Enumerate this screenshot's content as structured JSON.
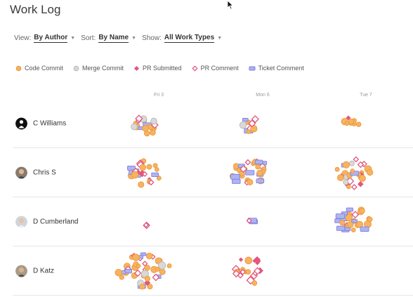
{
  "title": "Work Log",
  "filters": [
    {
      "label": "View:",
      "value": "By Author"
    },
    {
      "label": "Sort:",
      "value": "By Name"
    },
    {
      "label": "Show:",
      "value": "All Work Types"
    }
  ],
  "legend": [
    {
      "label": "Code Commit",
      "shape": "circle",
      "color": "#f5a84a"
    },
    {
      "label": "Merge Commit",
      "shape": "circle-gray",
      "color": "#c9c9c9"
    },
    {
      "label": "PR Submitted",
      "shape": "diamond-solid",
      "color": "#e2577d"
    },
    {
      "label": "PR Comment",
      "shape": "diamond-outline",
      "color": "#e2577d"
    },
    {
      "label": "Ticket Comment",
      "shape": "rect",
      "color": "#8d8fe3"
    }
  ],
  "dates": [
    "Fri 3",
    "Mon 6",
    "Tue 7"
  ],
  "authors": [
    {
      "name": "C Williams",
      "avatar": "silhouette-icon"
    },
    {
      "name": "Chris S",
      "avatar": "photo-avatar"
    },
    {
      "name": "D Cumberland",
      "avatar": "photo-avatar"
    },
    {
      "name": "D Katz",
      "avatar": "photo-avatar"
    }
  ]
}
